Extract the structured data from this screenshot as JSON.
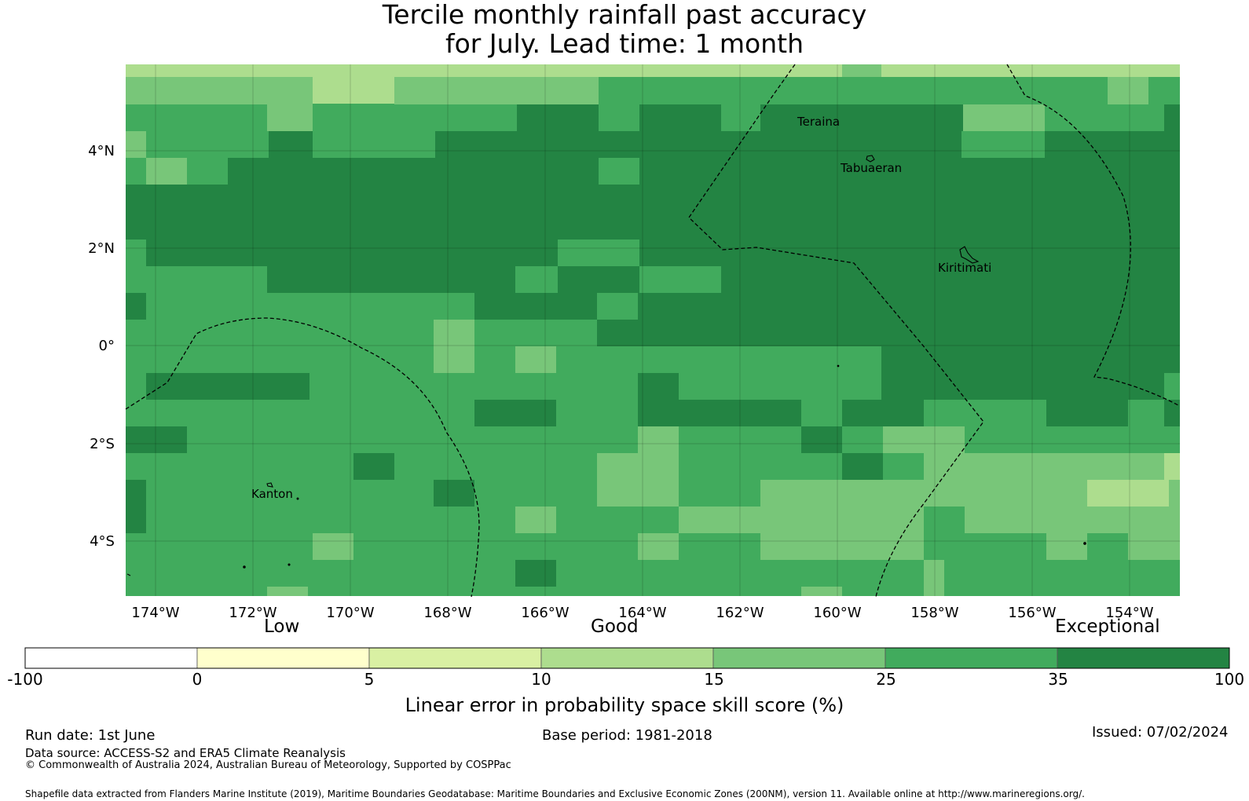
{
  "title": {
    "line1": "Tercile monthly rainfall past accuracy",
    "line2": "for July. Lead time: 1 month"
  },
  "map": {
    "lon_labels": [
      "174°W",
      "172°W",
      "170°W",
      "168°W",
      "166°W",
      "164°W",
      "162°W",
      "160°W",
      "158°W",
      "156°W",
      "154°W"
    ],
    "lat_labels": [
      "4°N",
      "2°N",
      "0°",
      "2°S",
      "4°S"
    ],
    "places": [
      "Teraina",
      "Tabuaeran",
      "Kiritimati",
      "Kanton"
    ],
    "colors": [
      "#ffffcc",
      "#d9f0a3",
      "#addd8e",
      "#78c679",
      "#41ab5d",
      "#238443"
    ],
    "grid_rows": [
      "32222233333333444444443333322333333333332224",
      "33333322233333444444444444445555444444444334",
      "44444444444444445555555555555555555555555555",
      "33444444444444444444444444444444445555545555",
      "54444455555555555555555555555555555555555555",
      "55555555555555555555555555555555555555555555",
      "55555555555555555555555555555555555555555555",
      "55555555555555555555555555555555555555555555",
      "55555555555555555555555555555555555555555555",
      "55555555555555555555555555555555555555555555",
      "55555555555555555555555555555555555555555555",
      "55555555555555555555555555555555555555555555",
      "55555555555555555555555555555555555555555555",
      "55555555555555555555555555555555555555555555",
      "55555555555555555555555555555555555555555555",
      "55555555555555555555555555555555555555555555",
      "55555555555555555555555555555555555555555555",
      "55555555555555555555555555555555555555555555",
      "55555555555555555555555555555555555555555555",
      "55555555555555555555555555555555555555555555",
      "44444444444444444444444444444444444444444444"
    ]
  },
  "colorbar": {
    "low_label": "Low",
    "good_label": "Good",
    "exceptional_label": "Exceptional",
    "ticks": [
      "-100",
      "0",
      "5",
      "10",
      "15",
      "25",
      "35",
      "100"
    ],
    "colors": [
      "#ffffff",
      "#ffffcc",
      "#d9f0a3",
      "#addd8e",
      "#78c679",
      "#41ab5d",
      "#238443"
    ],
    "axis_label": "Linear error in probability space skill score (%)"
  },
  "footer": {
    "run_date": "Run date: 1st June",
    "base_period": "Base period: 1981-2018",
    "issued": "Issued: 07/02/2024",
    "data_source": "Data source: ACCESS-S2 and ERA5 Climate Reanalysis",
    "copyright": "© Commonwealth of Australia 2024, Australian Bureau of Meteorology, Supported by COSPPac",
    "shapefile": "Shapefile data extracted from Flanders Marine Institute (2019), Maritime Boundaries Geodatabase: Maritime Boundaries and Exclusive Economic Zones (200NM), version 11. Available online at http://www.marineregions.org/."
  }
}
